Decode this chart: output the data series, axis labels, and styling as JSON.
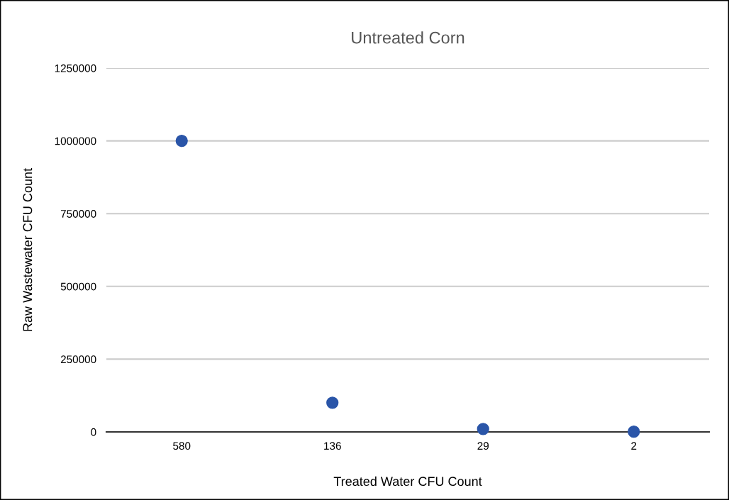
{
  "chart_data": {
    "type": "scatter",
    "title": "Untreated Corn",
    "xlabel": "Treated Water CFU Count",
    "ylabel": "Raw Wastewater CFU Count",
    "categories": [
      "580",
      "136",
      "29",
      "2"
    ],
    "series": [
      {
        "color": "#2a55a8",
        "values": [
          1000000,
          100000,
          10000,
          1000
        ]
      }
    ],
    "ylim": [
      0,
      1250000
    ],
    "yticks": [
      0,
      250000,
      500000,
      750000,
      1000000,
      1250000
    ],
    "grid": "y",
    "legend": false,
    "marker": "circle"
  }
}
